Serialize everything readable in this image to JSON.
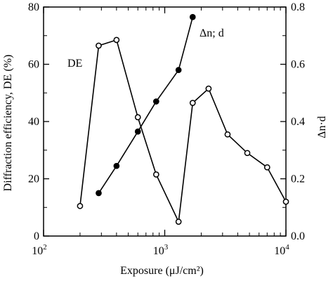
{
  "chart_data": {
    "type": "line",
    "title": "",
    "xlabel": "Exposure (μJ/cm²)",
    "x_scale": "log",
    "xlim": [
      100,
      10000
    ],
    "x_ticks": [
      {
        "value": 100,
        "base": "10",
        "exp": "2"
      },
      {
        "value": 1000,
        "base": "10",
        "exp": "3"
      },
      {
        "value": 10000,
        "base": "10",
        "exp": "4"
      }
    ],
    "y_left": {
      "label": "Diffraction efficiency, DE (%)",
      "lim": [
        0,
        80
      ],
      "ticks": [
        0,
        20,
        40,
        60,
        80
      ],
      "tick_labels": [
        "0",
        "20",
        "40",
        "60",
        "80"
      ]
    },
    "y_right": {
      "label": "Δn·d",
      "lim": [
        0,
        0.8
      ],
      "ticks": [
        0,
        0.2,
        0.4,
        0.6,
        0.8
      ],
      "tick_labels": [
        "0.0",
        "0.2",
        "0.4",
        "0.6",
        "0.8"
      ]
    },
    "grid": false,
    "series": [
      {
        "name": "DE",
        "axis": "left",
        "marker": "open-circle",
        "x": [
          200,
          285,
          400,
          600,
          850,
          1300,
          1700,
          2300,
          3300,
          4800,
          7000,
          10000
        ],
        "y": [
          10.5,
          66.5,
          68.5,
          41.5,
          21.5,
          5,
          46.5,
          51.5,
          35.5,
          29,
          24,
          12
        ]
      },
      {
        "name": "Δn; d",
        "axis": "right",
        "marker": "filled-circle",
        "x": [
          285,
          400,
          600,
          850,
          1300,
          1700
        ],
        "y": [
          0.15,
          0.245,
          0.365,
          0.47,
          0.58,
          0.765
        ]
      }
    ]
  }
}
